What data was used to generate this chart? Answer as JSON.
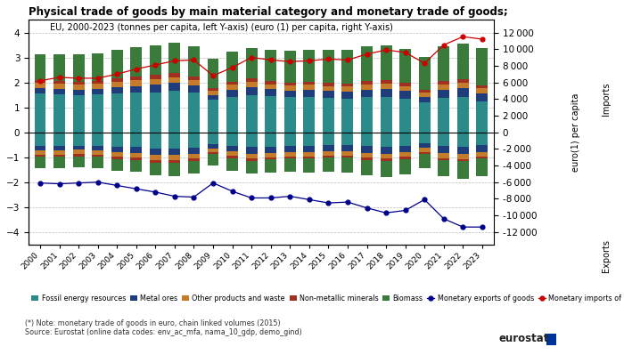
{
  "years": [
    2000,
    2001,
    2002,
    2003,
    2004,
    2005,
    2006,
    2007,
    2008,
    2009,
    2010,
    2011,
    2012,
    2013,
    2014,
    2015,
    2016,
    2017,
    2018,
    2019,
    2020,
    2021,
    2022,
    2023
  ],
  "title": "Physical trade of goods by main material category and monetary trade of goods;",
  "subtitle": "EU, 2000-2023 (tonnes per capita, left Y-axis) (euro (1) per capita, right Y-axis)",
  "note": "(*) Note: monetary trade of goods in euro, chain linked volumes (2015)\nSource: Eurostat (online data codes: env_ac_mfa, nama_10_gdp, demo_gind)",
  "categories": [
    "Fossil energy resources",
    "Metal ores",
    "Other products and waste",
    "Non-metallic minerals",
    "Biomass"
  ],
  "colors": [
    "#2b8a8a",
    "#1e3d7a",
    "#c47c2a",
    "#a03020",
    "#3a7a3a"
  ],
  "imports": {
    "fossil": [
      1.55,
      1.52,
      1.5,
      1.52,
      1.55,
      1.58,
      1.6,
      1.65,
      1.58,
      1.3,
      1.42,
      1.5,
      1.45,
      1.42,
      1.42,
      1.38,
      1.35,
      1.4,
      1.42,
      1.35,
      1.2,
      1.38,
      1.42,
      1.25
    ],
    "metal": [
      0.22,
      0.22,
      0.2,
      0.22,
      0.25,
      0.28,
      0.3,
      0.32,
      0.3,
      0.2,
      0.28,
      0.3,
      0.28,
      0.26,
      0.28,
      0.28,
      0.28,
      0.3,
      0.32,
      0.3,
      0.22,
      0.32,
      0.35,
      0.3
    ],
    "other": [
      0.2,
      0.2,
      0.2,
      0.2,
      0.22,
      0.22,
      0.24,
      0.24,
      0.22,
      0.18,
      0.2,
      0.22,
      0.2,
      0.2,
      0.2,
      0.2,
      0.2,
      0.22,
      0.22,
      0.2,
      0.18,
      0.22,
      0.22,
      0.22
    ],
    "nonmet": [
      0.12,
      0.12,
      0.12,
      0.12,
      0.14,
      0.14,
      0.15,
      0.15,
      0.14,
      0.1,
      0.12,
      0.14,
      0.12,
      0.12,
      0.12,
      0.12,
      0.12,
      0.13,
      0.13,
      0.12,
      0.1,
      0.13,
      0.13,
      0.12
    ],
    "biomass": [
      1.05,
      1.08,
      1.1,
      1.12,
      1.15,
      1.18,
      1.2,
      1.22,
      1.22,
      1.18,
      1.2,
      1.22,
      1.25,
      1.28,
      1.3,
      1.32,
      1.35,
      1.38,
      1.4,
      1.38,
      1.32,
      1.4,
      1.45,
      1.48
    ]
  },
  "exports": {
    "fossil": [
      -0.55,
      -0.55,
      -0.53,
      -0.55,
      -0.58,
      -0.6,
      -0.65,
      -0.65,
      -0.62,
      -0.48,
      -0.55,
      -0.6,
      -0.58,
      -0.56,
      -0.56,
      -0.52,
      -0.52,
      -0.56,
      -0.58,
      -0.55,
      -0.45,
      -0.56,
      -0.58,
      -0.52
    ],
    "metal": [
      -0.18,
      -0.18,
      -0.17,
      -0.18,
      -0.2,
      -0.22,
      -0.24,
      -0.26,
      -0.24,
      -0.16,
      -0.22,
      -0.26,
      -0.24,
      -0.22,
      -0.24,
      -0.24,
      -0.24,
      -0.26,
      -0.28,
      -0.26,
      -0.18,
      -0.28,
      -0.3,
      -0.26
    ],
    "other": [
      -0.18,
      -0.18,
      -0.18,
      -0.18,
      -0.2,
      -0.2,
      -0.22,
      -0.22,
      -0.2,
      -0.16,
      -0.18,
      -0.2,
      -0.18,
      -0.18,
      -0.18,
      -0.18,
      -0.18,
      -0.2,
      -0.2,
      -0.18,
      -0.16,
      -0.2,
      -0.2,
      -0.2
    ],
    "nonmet": [
      -0.08,
      -0.08,
      -0.08,
      -0.08,
      -0.09,
      -0.09,
      -0.1,
      -0.1,
      -0.09,
      -0.07,
      -0.08,
      -0.09,
      -0.08,
      -0.08,
      -0.08,
      -0.08,
      -0.08,
      -0.09,
      -0.09,
      -0.08,
      -0.07,
      -0.08,
      -0.09,
      -0.08
    ],
    "biomass": [
      -0.45,
      -0.45,
      -0.46,
      -0.46,
      -0.48,
      -0.48,
      -0.5,
      -0.52,
      -0.52,
      -0.48,
      -0.5,
      -0.52,
      -0.53,
      -0.54,
      -0.56,
      -0.58,
      -0.6,
      -0.62,
      -0.64,
      -0.62,
      -0.58,
      -0.64,
      -0.68,
      -0.7
    ]
  },
  "monetary_imports": [
    6200,
    6600,
    6500,
    6500,
    7000,
    7600,
    8100,
    8600,
    8700,
    6800,
    7800,
    9000,
    8700,
    8500,
    8600,
    8800,
    8700,
    9400,
    9900,
    9600,
    8300,
    10500,
    11500,
    11200
  ],
  "monetary_exports": [
    -6100,
    -6200,
    -6100,
    -6000,
    -6400,
    -6800,
    -7200,
    -7700,
    -7800,
    -6100,
    -7100,
    -7900,
    -7900,
    -7700,
    -8100,
    -8500,
    -8400,
    -9100,
    -9700,
    -9400,
    -8100,
    -10400,
    -11400,
    -11400
  ],
  "left_ylim": [
    -4.5,
    4.5
  ],
  "left_yticks": [
    -4,
    -3,
    -2,
    -1,
    0,
    1,
    2,
    3,
    4
  ],
  "right_ylim": [
    -13500,
    13500
  ],
  "right_yticks": [
    -12000,
    -10000,
    -8000,
    -6000,
    -4000,
    -2000,
    0,
    2000,
    4000,
    6000,
    8000,
    10000,
    12000
  ],
  "scatter_import_color": "#cc0000",
  "scatter_export_color": "#00008b",
  "bar_width": 0.6
}
